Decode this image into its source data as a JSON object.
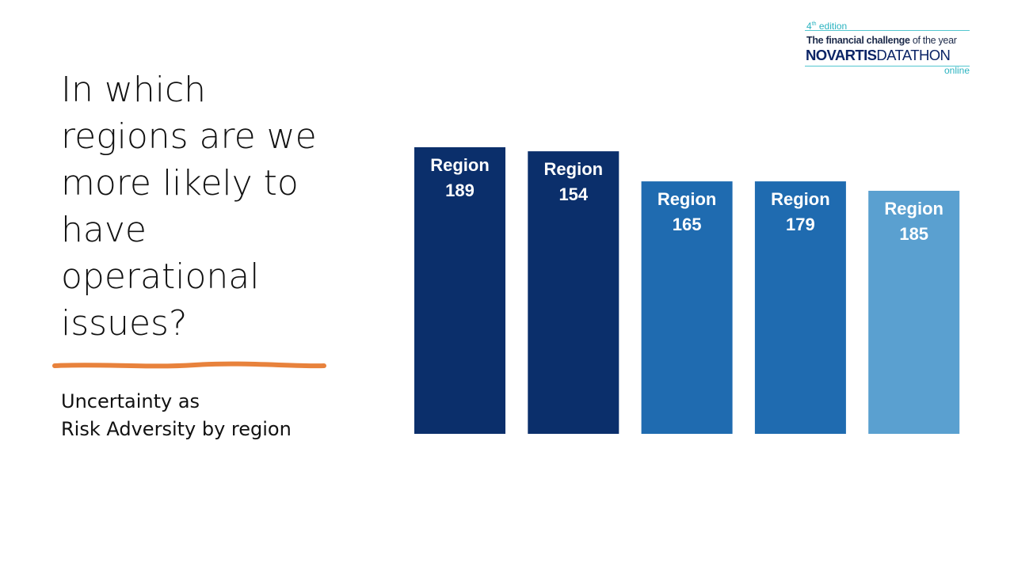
{
  "slide": {
    "title_lines": [
      "In which",
      "regions are we",
      "more likely to",
      "have",
      "operational",
      "issues?"
    ],
    "subtitle_lines": [
      "Uncertainty as",
      "Risk Adversity by region"
    ],
    "underline_color": "#e8823c"
  },
  "logo": {
    "edition_number": "4",
    "edition_suffix": "th",
    "edition_word": " edition",
    "tagline_bold": "The financial challenge",
    "tagline_rest": " of the year",
    "brand_bold": "NOVARTIS",
    "brand_rest": "DATATHON",
    "online": "online",
    "accent_color": "#2bb3c0",
    "brand_color": "#0b2466"
  },
  "chart_data": {
    "type": "bar",
    "categories": [
      "Region 189",
      "Region 154",
      "Region 165",
      "Region 179",
      "Region 185"
    ],
    "values": [
      100,
      98.6,
      88.1,
      88.1,
      84.8
    ],
    "colors": [
      "#0b2f6b",
      "#0b2f6b",
      "#1f6bb0",
      "#1f6bb0",
      "#5aa0d0"
    ],
    "title": "",
    "xlabel": "",
    "ylabel": "",
    "ylim": [
      0,
      100
    ],
    "grid": false,
    "legend": "none"
  }
}
